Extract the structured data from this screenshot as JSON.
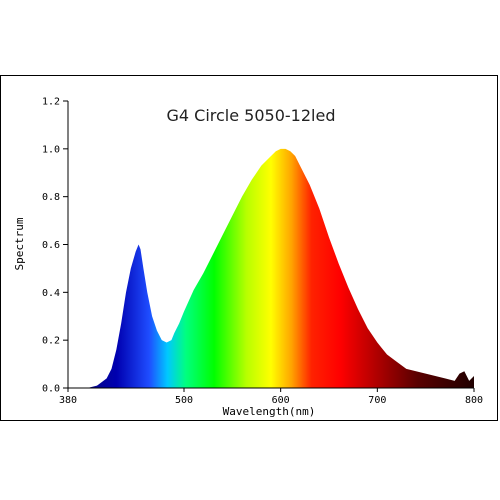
{
  "chart_data": {
    "type": "area",
    "title": "G4 Circle 5050-12led",
    "xlabel": "Wavelength(nm)",
    "ylabel": "Spectrum",
    "xlim": [
      380,
      800
    ],
    "ylim": [
      0,
      1.2
    ],
    "x_ticks": [
      380,
      500,
      600,
      700,
      800
    ],
    "y_ticks": [
      0.0,
      0.2,
      0.4,
      0.6,
      0.8,
      1.0,
      1.2
    ],
    "x_tick_labels": [
      "380",
      "500",
      "600",
      "700",
      "800"
    ],
    "y_tick_labels": [
      "0.0",
      "0.2",
      "0.4",
      "0.6",
      "0.8",
      "1.0",
      "1.2"
    ],
    "grid": false,
    "fill": "visible-spectrum colormap",
    "series": [
      {
        "x": [
          380,
          400,
          410,
          420,
          425,
          430,
          435,
          440,
          445,
          450,
          453,
          455,
          458,
          462,
          467,
          472,
          477,
          482,
          487,
          490,
          495,
          500,
          510,
          520,
          530,
          540,
          550,
          560,
          570,
          580,
          590,
          595,
          600,
          605,
          610,
          615,
          620,
          630,
          640,
          650,
          660,
          670,
          680,
          690,
          700,
          710,
          720,
          730,
          740,
          750,
          760,
          770,
          780,
          785,
          790,
          795,
          800
        ],
        "y": [
          0.0,
          0.0,
          0.01,
          0.04,
          0.08,
          0.16,
          0.27,
          0.4,
          0.5,
          0.57,
          0.6,
          0.58,
          0.5,
          0.4,
          0.3,
          0.24,
          0.2,
          0.19,
          0.2,
          0.23,
          0.27,
          0.32,
          0.41,
          0.48,
          0.56,
          0.64,
          0.72,
          0.8,
          0.87,
          0.93,
          0.97,
          0.99,
          1.0,
          1.0,
          0.99,
          0.97,
          0.93,
          0.85,
          0.75,
          0.63,
          0.52,
          0.42,
          0.33,
          0.25,
          0.19,
          0.14,
          0.11,
          0.08,
          0.07,
          0.06,
          0.05,
          0.04,
          0.03,
          0.06,
          0.07,
          0.03,
          0.05
        ]
      }
    ]
  }
}
